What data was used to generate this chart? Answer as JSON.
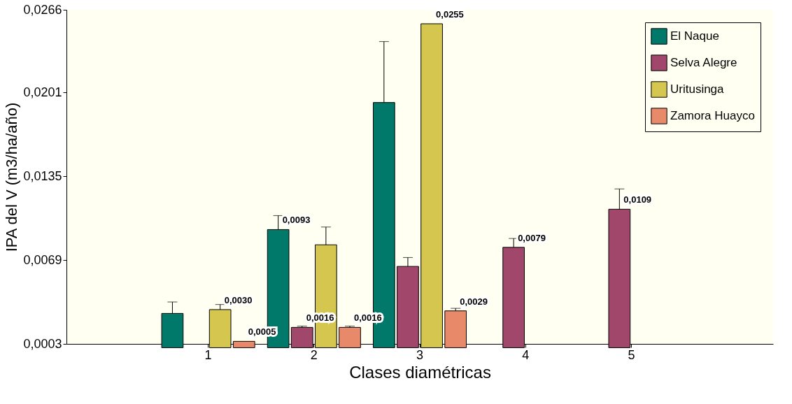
{
  "chart_data": {
    "type": "bar",
    "xlabel": "Clases diamétricas",
    "ylabel": "IPA del V (m3/ha/año)",
    "categories": [
      "1",
      "2",
      "3",
      "4",
      "5"
    ],
    "series": [
      {
        "name": "El Naque",
        "color": "#00796b",
        "values": [
          0.0027,
          0.0093,
          0.0193,
          null,
          null
        ],
        "errors": [
          [
            0.0027,
            0.0036
          ],
          [
            0.0093,
            0.0104
          ],
          [
            0.0193,
            0.0241
          ],
          null,
          null
        ],
        "value_labels": [
          null,
          "0,0093",
          null,
          null,
          null
        ]
      },
      {
        "name": "Selva Alegre",
        "color": "#a0476b",
        "values": [
          null,
          0.0016,
          0.0064,
          0.0079,
          0.0109
        ],
        "errors": [
          null,
          [
            0.0016,
            0.0017
          ],
          [
            0.0064,
            0.0071
          ],
          [
            0.0079,
            0.0086
          ],
          [
            0.0109,
            0.0125
          ]
        ],
        "value_labels": [
          null,
          "0,0016",
          null,
          "0,0079",
          "0,0109"
        ]
      },
      {
        "name": "Uritusinga",
        "color": "#d4c64f",
        "values": [
          0.003,
          0.0081,
          0.0255,
          null,
          null
        ],
        "errors": [
          [
            0.003,
            0.0034
          ],
          [
            0.0081,
            0.0095
          ],
          null,
          null,
          null
        ],
        "value_labels": [
          "0,0030",
          null,
          "0,0255",
          null,
          null
        ]
      },
      {
        "name": "Zamora Huayco",
        "color": "#e8896a",
        "values": [
          0.0005,
          0.0016,
          0.0029,
          null,
          null
        ],
        "errors": [
          null,
          [
            0.0016,
            0.0017
          ],
          [
            0.0029,
            0.0031
          ],
          null,
          null
        ],
        "value_labels": [
          "0,0005",
          "0,0016",
          "0,0029",
          null,
          null
        ]
      }
    ],
    "ylim": [
      0.0003,
      0.0266
    ],
    "yticks": [
      {
        "value": 0.0003,
        "label": "0,0003"
      },
      {
        "value": 0.0069,
        "label": "0,0069"
      },
      {
        "value": 0.0135,
        "label": "0,0135"
      },
      {
        "value": 0.0201,
        "label": "0,0201"
      },
      {
        "value": 0.0266,
        "label": "0,0266"
      }
    ],
    "grid": false,
    "legend": "top right"
  }
}
